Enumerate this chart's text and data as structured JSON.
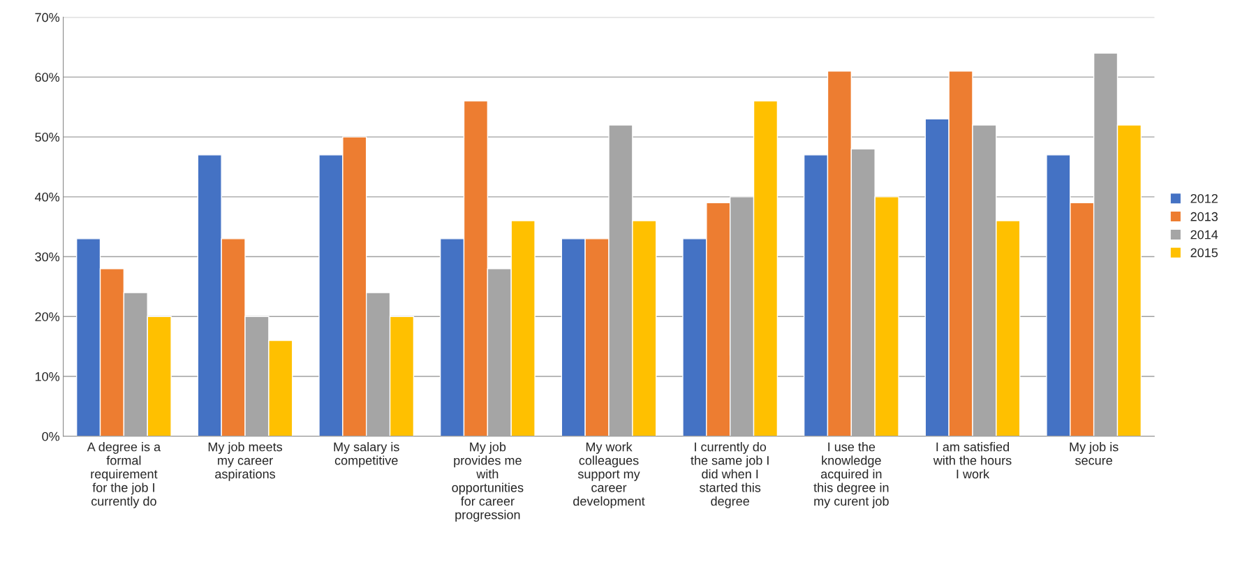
{
  "chart_data": {
    "type": "bar",
    "categories": [
      "A degree is a\nformal\nrequirement\nfor the job I\ncurrently do",
      "My job meets\nmy career\naspirations",
      "My salary is\ncompetitive",
      "My job\nprovides me\nwith\nopportunities\nfor career\nprogression",
      "My work\ncolleagues\nsupport my\ncareer\ndevelopment",
      "I currently do\nthe same job I\ndid when I\nstarted this\ndegree",
      "I use the\nknowledge\nacquired in\nthis degree in\nmy curent job",
      "I am satisfied\nwith the hours\nI work",
      "My job is\nsecure"
    ],
    "series": [
      {
        "name": "2012",
        "color": "#4472c4",
        "values": [
          33,
          47,
          47,
          33,
          33,
          33,
          47,
          53,
          47
        ]
      },
      {
        "name": "2013",
        "color": "#ed7d31",
        "values": [
          28,
          33,
          50,
          56,
          33,
          39,
          61,
          61,
          39
        ]
      },
      {
        "name": "2014",
        "color": "#a5a5a5",
        "values": [
          24,
          20,
          24,
          28,
          52,
          40,
          48,
          52,
          64
        ]
      },
      {
        "name": "2015",
        "color": "#ffc000",
        "values": [
          20,
          16,
          20,
          36,
          36,
          56,
          40,
          36,
          52
        ]
      }
    ],
    "ylim": [
      0,
      70
    ],
    "yticks": [
      {
        "value": 0,
        "label": "0%"
      },
      {
        "value": 10,
        "label": "10%"
      },
      {
        "value": 20,
        "label": "20%"
      },
      {
        "value": 30,
        "label": "30%"
      },
      {
        "value": 40,
        "label": "40%"
      },
      {
        "value": 50,
        "label": "50%"
      },
      {
        "value": 60,
        "label": "60%"
      },
      {
        "value": 70,
        "label": "70%"
      }
    ],
    "grid": "y",
    "legend": "right"
  }
}
